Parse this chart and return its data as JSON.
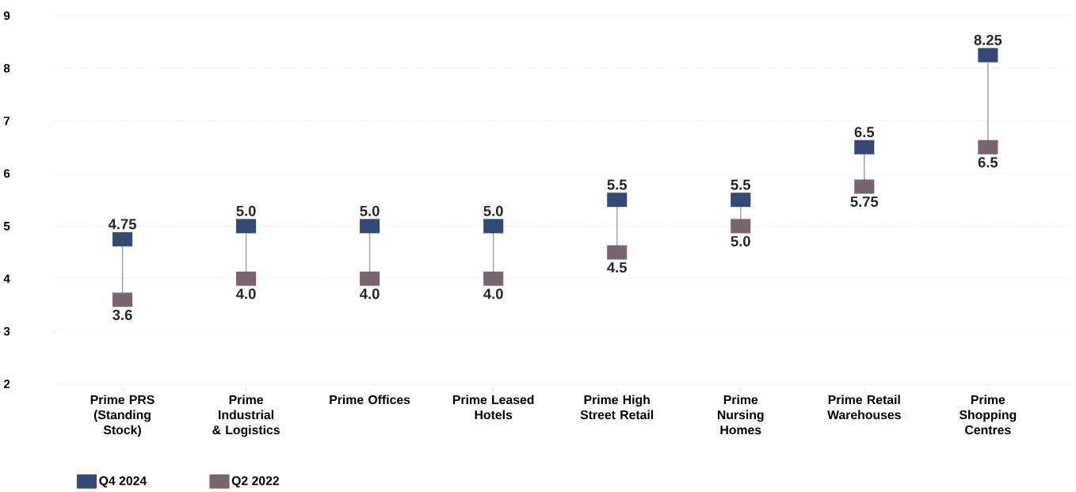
{
  "chart_data": {
    "type": "scatter",
    "marker": "square",
    "grid": "y",
    "legend": "bottom left",
    "categories": [
      "Prime PRS (Standing Stock)",
      "Prime Industrial & Logistics",
      "Prime Offices",
      "Prime Leased Hotels",
      "Prime High Street Retail",
      "Prime Nursing Homes",
      "Prime Retail Warehouses",
      "Prime Shopping Centres"
    ],
    "ylim": [
      2,
      9
    ],
    "yticks": [
      2,
      3,
      4,
      5,
      6,
      7,
      8,
      9
    ],
    "series": [
      {
        "name": "Q4 2024",
        "color": "#344a75",
        "values": [
          4.75,
          5,
          5,
          5,
          5.5,
          5.5,
          6.5,
          8.25
        ],
        "value_labels": [
          "4.75",
          "5.0",
          "5.0",
          "5.0",
          "5.5",
          "5.5",
          "6.5",
          "8.25"
        ]
      },
      {
        "name": "Q2 2022",
        "color": "#776570",
        "values": [
          3.6,
          4,
          4,
          4,
          4.5,
          5,
          5.75,
          6.5
        ],
        "value_labels": [
          "3.6",
          "4.0",
          "4.0",
          "4.0",
          "4.5",
          "5.0",
          "5.75",
          "6.5"
        ]
      }
    ]
  }
}
